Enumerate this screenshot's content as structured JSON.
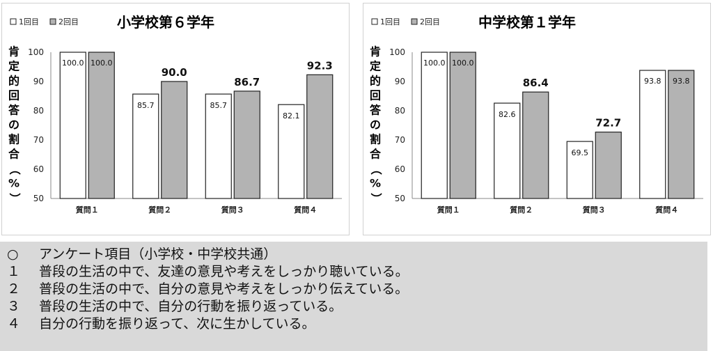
{
  "charts": [
    {
      "title": "小学校第６学年",
      "ylabel": "肯定的回答の割合（%）",
      "legend": [
        "1回目",
        "2回目"
      ]
    },
    {
      "title": "中学校第１学年",
      "ylabel": "肯定的回答の割合（%）",
      "legend": [
        "1回目",
        "2回目"
      ]
    }
  ],
  "chart_data": [
    {
      "type": "bar",
      "title": "小学校第６学年",
      "xlabel": "",
      "ylabel": "肯定的回答の割合（%）",
      "categories": [
        "質問１",
        "質問２",
        "質問３",
        "質問４"
      ],
      "series": [
        {
          "name": "1回目",
          "values": [
            100.0,
            85.7,
            85.7,
            82.1
          ],
          "labels": [
            "100.0",
            "85.7",
            "85.7",
            "82.1"
          ],
          "color": "#ffffff"
        },
        {
          "name": "2回目",
          "values": [
            100.0,
            90.0,
            86.7,
            92.3
          ],
          "labels": [
            "100.0",
            "90.0",
            "86.7",
            "92.3"
          ],
          "color": "#b3b3b3"
        }
      ],
      "ylim": [
        50,
        100
      ],
      "yticks": [
        50,
        60,
        70,
        80,
        90,
        100
      ],
      "grid": false,
      "legend_position": "top-left"
    },
    {
      "type": "bar",
      "title": "中学校第１学年",
      "xlabel": "",
      "ylabel": "肯定的回答の割合（%）",
      "categories": [
        "質問１",
        "質問２",
        "質問３",
        "質問４"
      ],
      "series": [
        {
          "name": "1回目",
          "values": [
            100.0,
            82.6,
            69.5,
            93.8
          ],
          "labels": [
            "100.0",
            "82.6",
            "69.5",
            "93.8"
          ],
          "color": "#ffffff"
        },
        {
          "name": "2回目",
          "values": [
            100.0,
            86.4,
            72.7,
            93.8
          ],
          "labels": [
            "100.0",
            "86.4",
            "72.7",
            "93.8"
          ],
          "color": "#b3b3b3"
        }
      ],
      "ylim": [
        50,
        100
      ],
      "yticks": [
        50,
        60,
        70,
        80,
        90,
        100
      ],
      "grid": false,
      "legend_position": "top-left"
    }
  ],
  "survey": {
    "heading_mark": "○",
    "heading": "アンケート項目（小学校・中学校共通）",
    "items": [
      {
        "num": "１",
        "text": "普段の生活の中で、友達の意見や考えをしっかり聴いている。"
      },
      {
        "num": "２",
        "text": "普段の生活の中で、自分の意見や考えをしっかり伝えている。"
      },
      {
        "num": "３",
        "text": "普段の生活の中で、自分の行動を振り返っている。"
      },
      {
        "num": "４",
        "text": "自分の行動を振り返って、次に生かしている。"
      }
    ]
  }
}
